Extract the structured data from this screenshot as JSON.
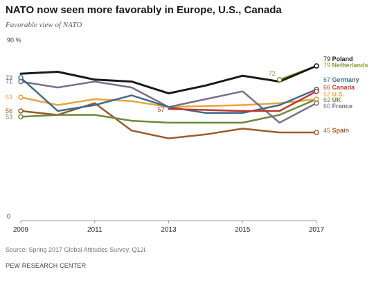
{
  "header": {
    "title": "NATO now seen more favorably in Europe, U.S., Canada",
    "subtitle": "Favorable view of NATO"
  },
  "footer": {
    "source": "Source: Spring 2017 Global Attitudes Survey. Q12i.",
    "org": "PEW RESEARCH CENTER"
  },
  "chart_data": {
    "type": "line",
    "title": "NATO now seen more favorably in Europe, U.S., Canada",
    "subtitle": "Favorable view of NATO",
    "ylabel": "",
    "xlabel": "",
    "x_ticks": [
      "2009",
      "2011",
      "2013",
      "2015",
      "2017"
    ],
    "y_ticks": [
      "90 %",
      "0"
    ],
    "ylim": [
      0,
      90
    ],
    "xlim": [
      2009,
      2017
    ],
    "grid": false,
    "series": [
      {
        "name": "Poland",
        "color": "#1a1a1a",
        "points": [
          [
            2009,
            75
          ],
          [
            2010,
            76
          ],
          [
            2011,
            72
          ],
          [
            2012,
            71
          ],
          [
            2013,
            65
          ],
          [
            2014,
            69
          ],
          [
            2015,
            74
          ],
          [
            2016,
            71
          ],
          [
            2017,
            79
          ]
        ],
        "start_label": "",
        "end_label": "79",
        "marker": "open-circle-end"
      },
      {
        "name": "Netherlands",
        "color": "#8a9a3a",
        "points": [
          [
            2016,
            72
          ],
          [
            2017,
            79
          ]
        ],
        "start_label": "72",
        "end_label": "79",
        "marker": "open-circle-both"
      },
      {
        "name": "Germany",
        "color": "#3d6a8a",
        "points": [
          [
            2009,
            73
          ],
          [
            2010,
            56
          ],
          [
            2011,
            59
          ],
          [
            2012,
            64
          ],
          [
            2013,
            58
          ],
          [
            2014,
            55
          ],
          [
            2015,
            55
          ],
          [
            2016,
            59
          ],
          [
            2017,
            67
          ]
        ],
        "start_label": "73",
        "end_label": "67",
        "marker": "open-circle-both"
      },
      {
        "name": "Canada",
        "color": "#c0392b",
        "points": [
          [
            2013,
            57
          ],
          [
            2014,
            56.5
          ],
          [
            2015,
            56
          ],
          [
            2016,
            56
          ],
          [
            2017,
            66
          ]
        ],
        "start_label": "57",
        "end_label": "66",
        "marker": "open-circle-end"
      },
      {
        "name": "U.S.",
        "color": "#e8a33d",
        "points": [
          [
            2009,
            63
          ],
          [
            2010,
            59
          ],
          [
            2011,
            62
          ],
          [
            2012,
            61
          ],
          [
            2013,
            58
          ],
          [
            2014,
            58.5
          ],
          [
            2015,
            59
          ],
          [
            2016,
            60
          ],
          [
            2017,
            62
          ]
        ],
        "start_label": "63",
        "end_label": "62",
        "marker": "open-circle-both"
      },
      {
        "name": "UK",
        "color": "#6b8a3a",
        "points": [
          [
            2009,
            53
          ],
          [
            2010,
            54
          ],
          [
            2011,
            54
          ],
          [
            2012,
            51
          ],
          [
            2013,
            50
          ],
          [
            2014,
            50
          ],
          [
            2015,
            50
          ],
          [
            2016,
            54
          ],
          [
            2017,
            62
          ]
        ],
        "start_label": "53",
        "end_label": "62",
        "marker": "open-circle-both"
      },
      {
        "name": "France",
        "color": "#7a6e8a",
        "points": [
          [
            2009,
            71
          ],
          [
            2010,
            68
          ],
          [
            2011,
            71
          ],
          [
            2012,
            68
          ],
          [
            2013,
            58
          ],
          [
            2014,
            62
          ],
          [
            2015,
            66
          ],
          [
            2016,
            50
          ],
          [
            2017,
            60
          ]
        ],
        "start_label": "71",
        "end_label": "60",
        "marker": "open-circle-both"
      },
      {
        "name": "Spain",
        "color": "#9a5a2a",
        "points": [
          [
            2009,
            56
          ],
          [
            2010,
            54
          ],
          [
            2011,
            60
          ],
          [
            2012,
            46
          ],
          [
            2013,
            42
          ],
          [
            2014,
            44
          ],
          [
            2015,
            47
          ],
          [
            2016,
            45
          ],
          [
            2017,
            45
          ]
        ],
        "start_label": "56",
        "end_label": "45",
        "marker": "open-circle-both"
      }
    ]
  }
}
